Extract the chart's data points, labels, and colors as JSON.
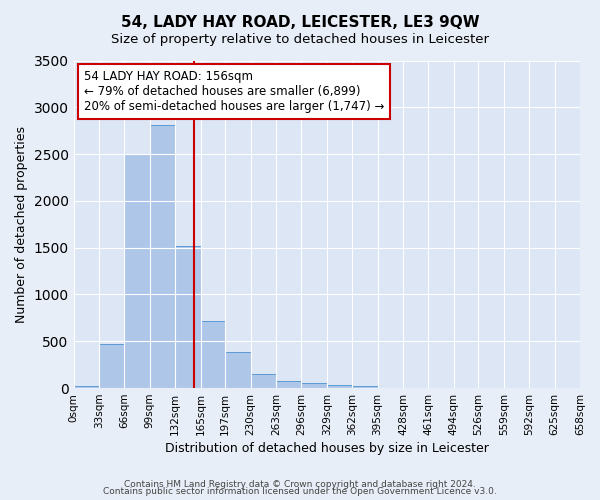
{
  "title": "54, LADY HAY ROAD, LEICESTER, LE3 9QW",
  "subtitle": "Size of property relative to detached houses in Leicester",
  "xlabel": "Distribution of detached houses by size in Leicester",
  "ylabel": "Number of detached properties",
  "bar_labels": [
    "0sqm",
    "33sqm",
    "66sqm",
    "99sqm",
    "132sqm",
    "165sqm",
    "197sqm",
    "230sqm",
    "263sqm",
    "296sqm",
    "329sqm",
    "362sqm",
    "395sqm",
    "428sqm",
    "461sqm",
    "494sqm",
    "526sqm",
    "559sqm",
    "592sqm",
    "625sqm",
    "658sqm"
  ],
  "bar_values": [
    20,
    470,
    2500,
    2810,
    1520,
    720,
    390,
    150,
    75,
    55,
    35,
    20,
    0,
    0,
    0,
    0,
    0,
    0,
    0,
    0
  ],
  "bar_color": "#aec6e8",
  "bar_edge_color": "#5b9bd5",
  "bin_edges": [
    0,
    33,
    66,
    99,
    132,
    165,
    197,
    230,
    263,
    296,
    329,
    362,
    395,
    428,
    461,
    494,
    526,
    559,
    592,
    625,
    658
  ],
  "vline_color": "#cc0000",
  "property_sqm": 156,
  "annotation_title": "54 LADY HAY ROAD: 156sqm",
  "annotation_line1": "← 79% of detached houses are smaller (6,899)",
  "annotation_line2": "20% of semi-detached houses are larger (1,747) →",
  "annotation_box_color": "#ffffff",
  "annotation_box_edge": "#cc0000",
  "ylim": [
    0,
    3500
  ],
  "yticks": [
    0,
    500,
    1000,
    1500,
    2000,
    2500,
    3000,
    3500
  ],
  "footer1": "Contains HM Land Registry data © Crown copyright and database right 2024.",
  "footer2": "Contains public sector information licensed under the Open Government Licence v3.0.",
  "bg_color": "#e8eef7",
  "plot_bg_color": "#dce6f5"
}
